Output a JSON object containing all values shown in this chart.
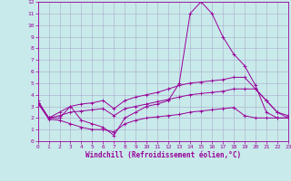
{
  "xlabel": "Windchill (Refroidissement éolien,°C)",
  "xlim": [
    0,
    23
  ],
  "ylim": [
    0,
    12
  ],
  "xticks": [
    0,
    1,
    2,
    3,
    4,
    5,
    6,
    7,
    8,
    9,
    10,
    11,
    12,
    13,
    14,
    15,
    16,
    17,
    18,
    19,
    20,
    21,
    22,
    23
  ],
  "yticks": [
    0,
    1,
    2,
    3,
    4,
    5,
    6,
    7,
    8,
    9,
    10,
    11,
    12
  ],
  "bg_color": "#c8eaea",
  "line_color": "#990099",
  "line1_x": [
    0,
    1,
    2,
    3,
    4,
    5,
    6,
    7,
    8,
    9,
    10,
    11,
    12,
    13,
    14,
    15,
    16,
    17,
    18,
    19,
    20,
    21,
    22,
    23
  ],
  "line1_y": [
    3.5,
    2.0,
    2.0,
    3.0,
    1.8,
    1.5,
    1.2,
    0.5,
    2.0,
    2.5,
    3.0,
    3.2,
    3.5,
    5.0,
    11.0,
    12.0,
    11.0,
    9.0,
    7.5,
    6.5,
    4.8,
    2.5,
    2.0,
    2.0
  ],
  "line2_x": [
    0,
    1,
    2,
    3,
    4,
    5,
    6,
    7,
    8,
    9,
    10,
    11,
    12,
    13,
    14,
    15,
    16,
    17,
    18,
    19,
    20,
    21,
    22,
    23
  ],
  "line2_y": [
    3.3,
    2.0,
    2.5,
    3.0,
    3.2,
    3.3,
    3.5,
    2.8,
    3.5,
    3.8,
    4.0,
    4.2,
    4.5,
    4.8,
    5.0,
    5.1,
    5.2,
    5.3,
    5.5,
    5.5,
    4.5,
    3.5,
    2.5,
    2.2
  ],
  "line3_x": [
    0,
    1,
    2,
    3,
    4,
    5,
    6,
    7,
    8,
    9,
    10,
    11,
    12,
    13,
    14,
    15,
    16,
    17,
    18,
    19,
    20,
    21,
    22,
    23
  ],
  "line3_y": [
    3.3,
    2.0,
    2.2,
    2.5,
    2.6,
    2.7,
    2.8,
    2.2,
    2.8,
    3.0,
    3.2,
    3.4,
    3.6,
    3.8,
    4.0,
    4.1,
    4.2,
    4.3,
    4.5,
    4.5,
    4.5,
    3.5,
    2.5,
    2.0
  ],
  "line4_x": [
    0,
    1,
    2,
    3,
    4,
    5,
    6,
    7,
    8,
    9,
    10,
    11,
    12,
    13,
    14,
    15,
    16,
    17,
    18,
    19,
    20,
    21,
    22,
    23
  ],
  "line4_y": [
    3.3,
    1.9,
    1.8,
    1.5,
    1.2,
    1.0,
    1.0,
    0.8,
    1.5,
    1.8,
    2.0,
    2.1,
    2.2,
    2.3,
    2.5,
    2.6,
    2.7,
    2.8,
    2.9,
    2.2,
    2.0,
    2.0,
    2.0,
    2.0
  ],
  "grid_color": "#aaaacc",
  "tick_fontsize": 4.5,
  "xlabel_fontsize": 5.5
}
